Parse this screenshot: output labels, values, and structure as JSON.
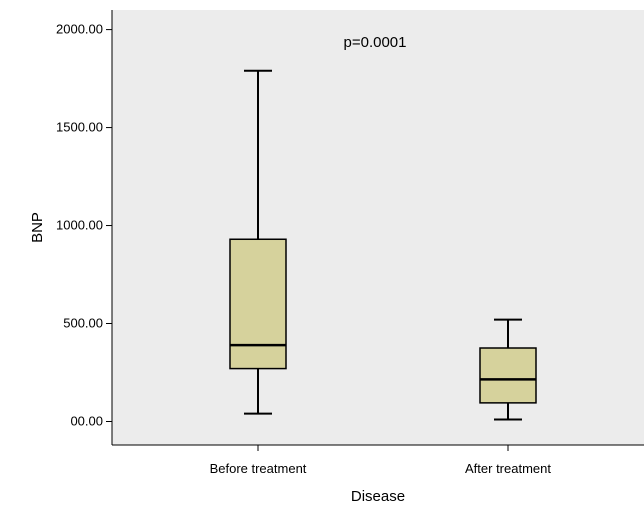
{
  "chart_data": {
    "type": "box",
    "title": "",
    "xlabel": "Disease",
    "ylabel": "BNP",
    "annotation": "p=0.0001",
    "categories": [
      "Before treatment",
      "After treatment"
    ],
    "yticks": [
      "00.00",
      "500.00",
      "1000.00",
      "1500.00",
      "2000.00"
    ],
    "ylim": [
      -120,
      2100
    ],
    "grid": false,
    "boxes": [
      {
        "category": "Before treatment",
        "min": 40,
        "q1": 270,
        "median": 390,
        "q3": 930,
        "max": 1790
      },
      {
        "category": "After treatment",
        "min": 10,
        "q1": 95,
        "median": 215,
        "q3": 375,
        "max": 520
      }
    ],
    "colors": {
      "plot_background": "#ececec",
      "box_fill": "#d6d29c",
      "line": "#000000"
    }
  }
}
